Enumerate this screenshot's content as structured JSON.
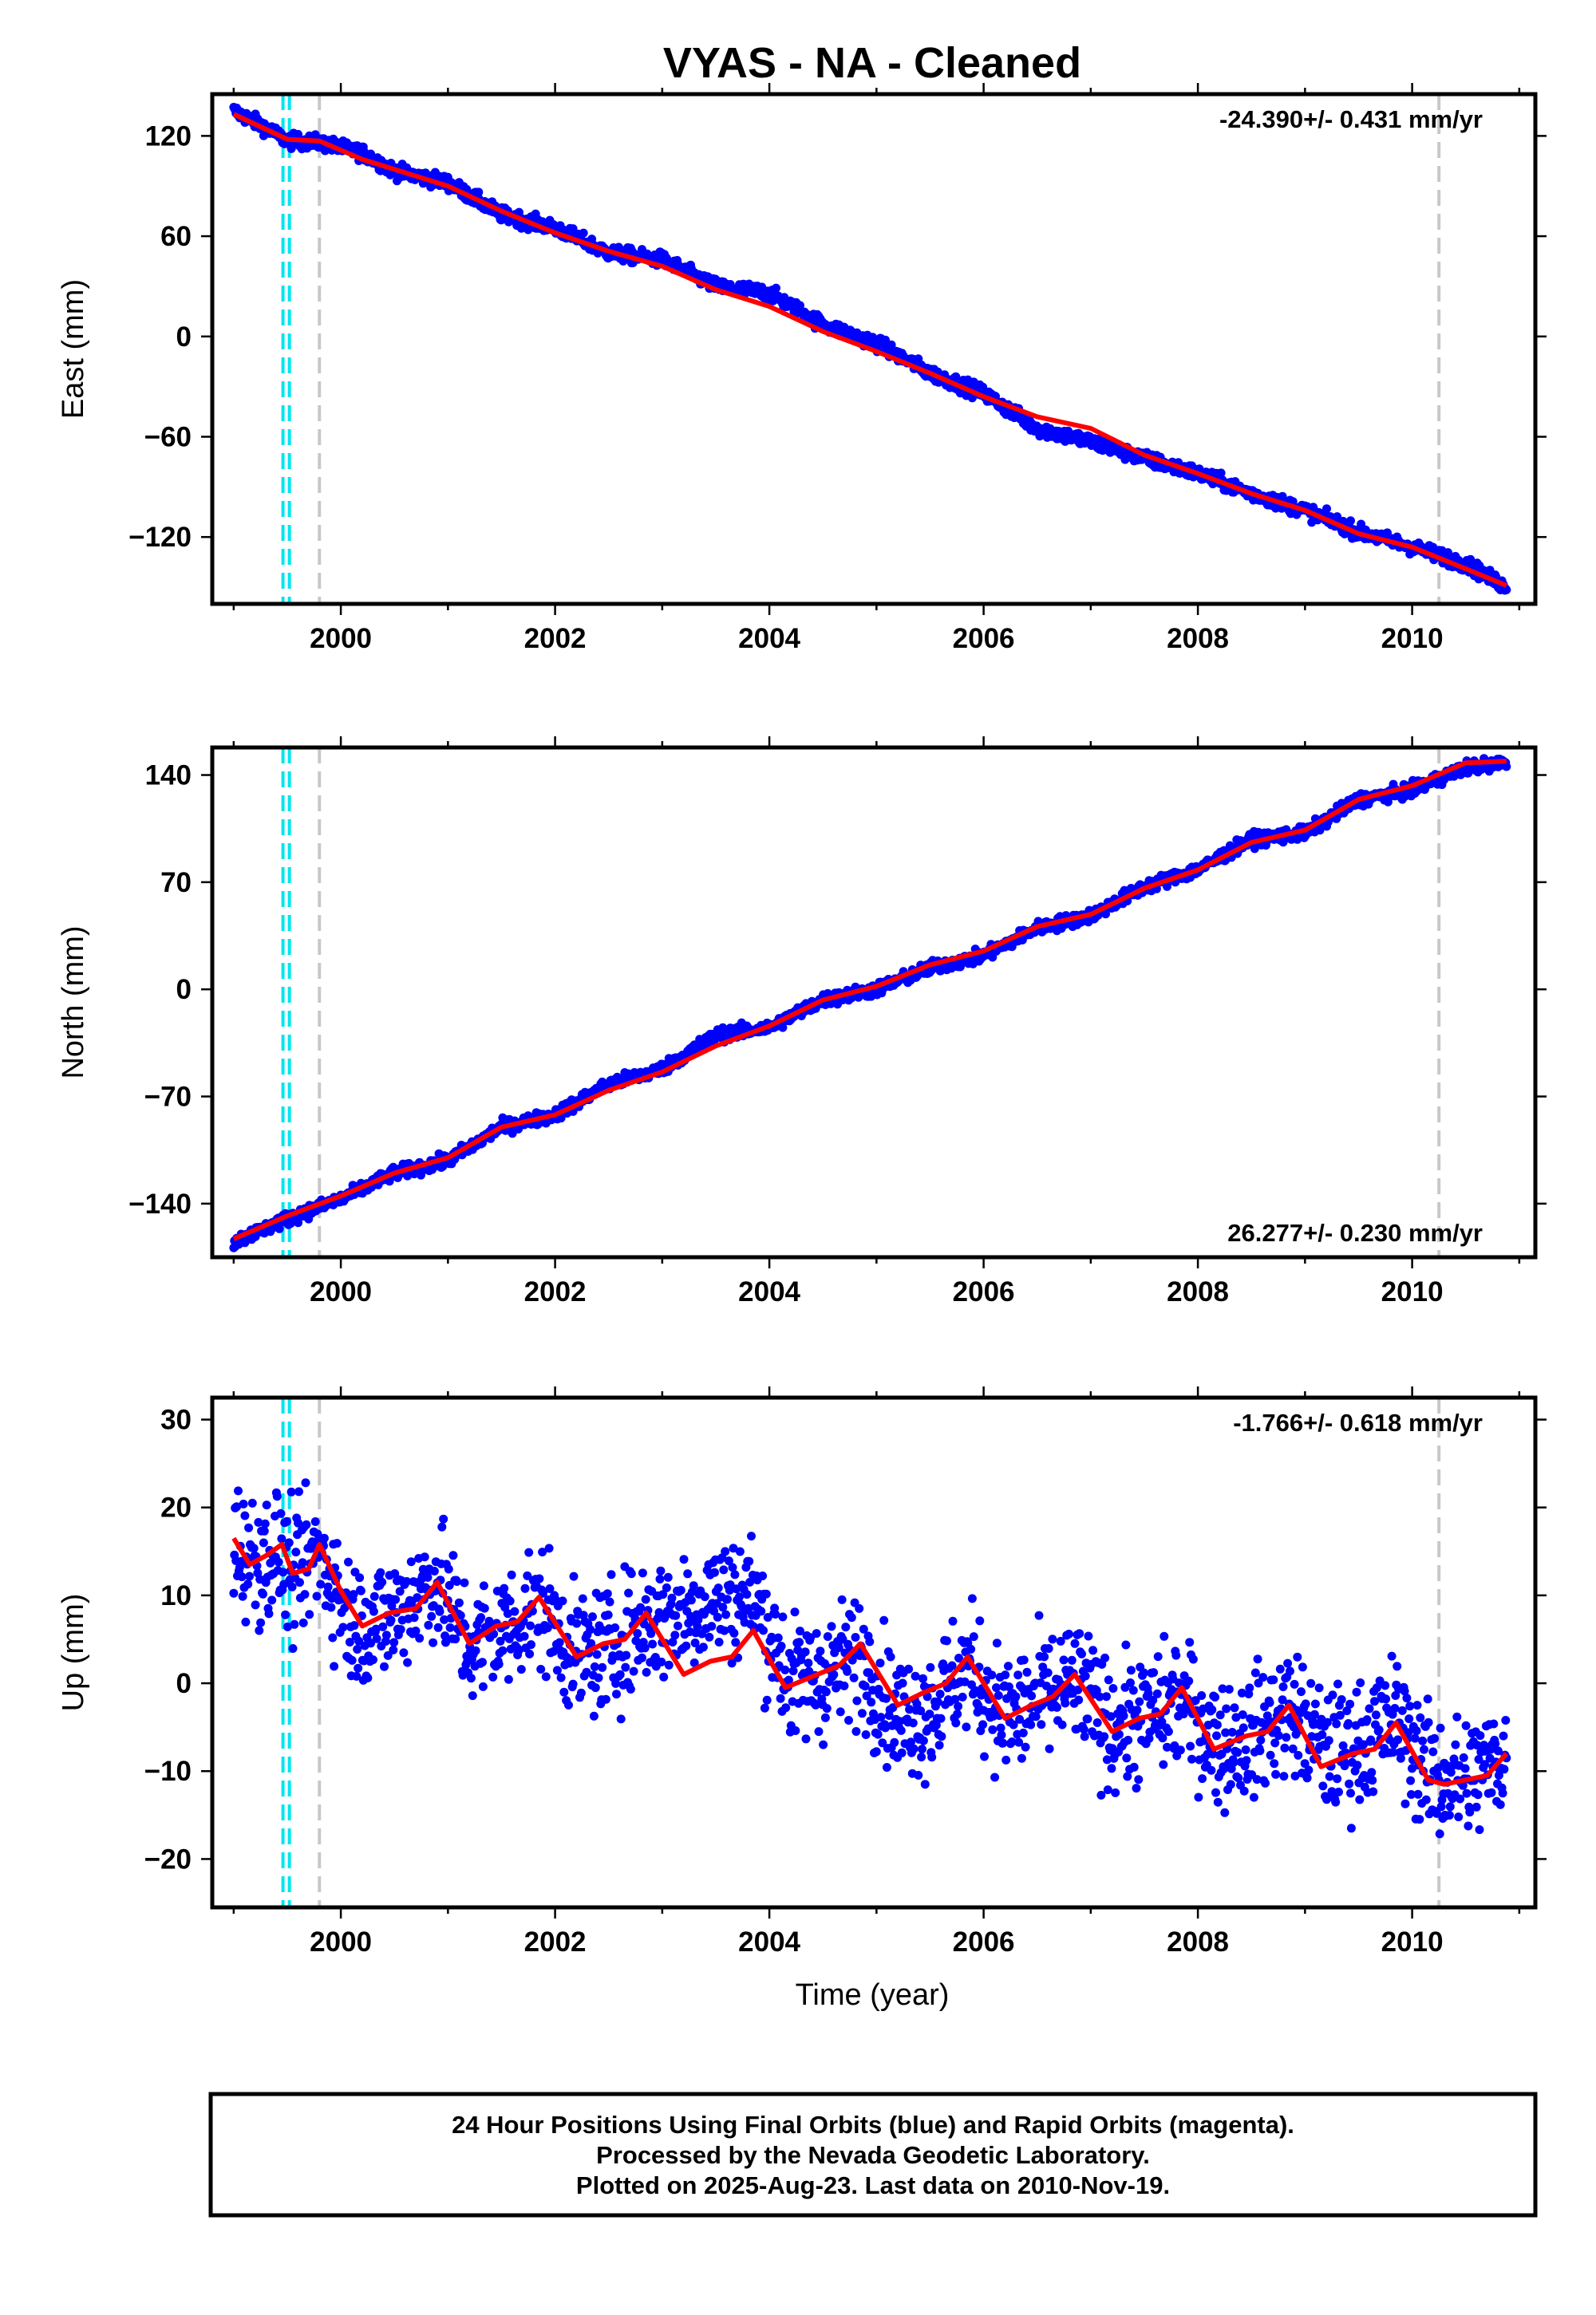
{
  "title": "VYAS  - NA - Cleaned",
  "xlabel": "Time (year)",
  "colors": {
    "data": "#0000ff",
    "model": "#ff0000",
    "offset_antenna": "#00e5ee",
    "offset_other": "#c8c8c8",
    "frame": "#000000"
  },
  "footer": {
    "line1": "24 Hour Positions Using Final Orbits (blue) and Rapid Orbits (magenta).",
    "line2": "Processed by the Nevada Geodetic Laboratory.",
    "line3": "Plotted on 2025-Aug-23. Last data on 2010-Nov-19."
  },
  "chart_data": [
    {
      "type": "scatter",
      "component": "East",
      "ylabel": "East (mm)",
      "rate_label": "-24.390+/- 0.431 mm/yr",
      "rate_position": "top-right",
      "xlim": [
        1998.8,
        2011.15
      ],
      "ylim": [
        -160,
        145
      ],
      "xticks": [
        2000,
        2002,
        2004,
        2006,
        2008,
        2010
      ],
      "yticks": [
        -120,
        -60,
        0,
        60,
        120
      ],
      "vertical_lines": [
        {
          "x": 1999.46,
          "color": "cyan"
        },
        {
          "x": 1999.52,
          "color": "cyan"
        },
        {
          "x": 1999.8,
          "color": "gray"
        },
        {
          "x": 2010.25,
          "color": "gray"
        }
      ],
      "series": [
        {
          "name": "Final Orbits (blue)",
          "kind": "points",
          "noise": 3,
          "x": [
            1999.0,
            1999.3,
            1999.5,
            1999.8,
            2000.2,
            2000.5,
            2001.0,
            2001.5,
            2002.0,
            2002.5,
            2003.0,
            2003.5,
            2004.0,
            2004.5,
            2005.0,
            2005.5,
            2006.0,
            2006.5,
            2007.0,
            2007.5,
            2008.0,
            2008.5,
            2009.0,
            2009.5,
            2010.0,
            2010.5,
            2010.88
          ],
          "y": [
            135,
            125,
            117,
            116,
            110,
            99,
            92,
            73,
            65,
            50,
            46,
            30,
            26,
            7,
            -4,
            -22,
            -34,
            -55,
            -63,
            -73,
            -82,
            -94,
            -104,
            -117,
            -126,
            -136,
            -150
          ]
        },
        {
          "name": "Model",
          "kind": "line",
          "x": [
            1999.0,
            1999.3,
            1999.5,
            1999.8,
            2000.2,
            2000.5,
            2001.0,
            2001.5,
            2002.0,
            2002.5,
            2003.0,
            2003.5,
            2004.0,
            2004.5,
            2005.0,
            2005.5,
            2006.0,
            2006.5,
            2007.0,
            2007.5,
            2008.0,
            2008.5,
            2009.0,
            2009.5,
            2010.0,
            2010.5,
            2010.88
          ],
          "y": [
            133,
            124,
            118,
            117,
            106,
            100,
            90,
            75,
            62,
            51,
            42,
            28,
            18,
            3,
            -9,
            -22,
            -36,
            -48,
            -55,
            -71,
            -82,
            -94,
            -104,
            -118,
            -126,
            -139,
            -149
          ]
        }
      ]
    },
    {
      "type": "scatter",
      "component": "North",
      "ylabel": "North (mm)",
      "rate_label": "26.277+/- 0.230 mm/yr",
      "rate_position": "bottom-right",
      "xlim": [
        1998.8,
        2011.15
      ],
      "ylim": [
        -175,
        158
      ],
      "xticks": [
        2000,
        2002,
        2004,
        2006,
        2008,
        2010
      ],
      "yticks": [
        -140,
        -70,
        0,
        70,
        140
      ],
      "vertical_lines": [
        {
          "x": 1999.46,
          "color": "cyan"
        },
        {
          "x": 1999.52,
          "color": "cyan"
        },
        {
          "x": 1999.8,
          "color": "gray"
        },
        {
          "x": 2010.25,
          "color": "gray"
        }
      ],
      "series": [
        {
          "name": "Final Orbits (blue)",
          "kind": "points",
          "noise": 3,
          "x": [
            1999.0,
            1999.5,
            2000.0,
            2000.5,
            2001.0,
            2001.5,
            2002.0,
            2002.5,
            2003.0,
            2003.5,
            2004.0,
            2004.5,
            2005.0,
            2005.5,
            2006.0,
            2006.5,
            2007.0,
            2007.5,
            2008.0,
            2008.5,
            2009.0,
            2009.5,
            2010.0,
            2010.5,
            2010.88
          ],
          "y": [
            -165,
            -150,
            -137,
            -120,
            -112,
            -90,
            -82,
            -62,
            -52,
            -30,
            -25,
            -7,
            0,
            14,
            22,
            40,
            48,
            67,
            78,
            98,
            102,
            124,
            130,
            145,
            148
          ]
        },
        {
          "name": "Model",
          "kind": "line",
          "x": [
            1999.0,
            1999.5,
            2000.0,
            2000.5,
            2001.0,
            2001.5,
            2002.0,
            2002.5,
            2003.0,
            2003.5,
            2004.0,
            2004.5,
            2005.0,
            2005.5,
            2006.0,
            2006.5,
            2007.0,
            2007.5,
            2008.0,
            2008.5,
            2009.0,
            2009.5,
            2010.0,
            2010.5,
            2010.88
          ],
          "y": [
            -163,
            -148,
            -135,
            -120,
            -110,
            -90,
            -82,
            -66,
            -54,
            -37,
            -24,
            -7,
            2,
            16,
            25,
            41,
            49,
            66,
            78,
            96,
            104,
            124,
            133,
            148,
            149
          ]
        }
      ]
    },
    {
      "type": "scatter",
      "component": "Up",
      "ylabel": "Up (mm)",
      "rate_label": "-1.766+/- 0.618 mm/yr",
      "rate_position": "top-right",
      "xlim": [
        1998.8,
        2011.15
      ],
      "ylim": [
        -25.5,
        32.5
      ],
      "xticks": [
        2000,
        2002,
        2004,
        2006,
        2008,
        2010
      ],
      "yticks": [
        -20,
        -10,
        0,
        10,
        20,
        30
      ],
      "vertical_lines": [
        {
          "x": 1999.46,
          "color": "cyan"
        },
        {
          "x": 1999.52,
          "color": "cyan"
        },
        {
          "x": 1999.8,
          "color": "gray"
        },
        {
          "x": 2010.25,
          "color": "gray"
        }
      ],
      "series": [
        {
          "name": "Final Orbits (blue)",
          "kind": "points",
          "noise": 5,
          "x": [
            1999.0,
            1999.2,
            1999.4,
            1999.55,
            1999.8,
            2000.1,
            2000.4,
            2000.9,
            2001.2,
            2001.5,
            2001.85,
            2002.2,
            2002.5,
            2002.85,
            2003.2,
            2003.5,
            2003.85,
            2004.2,
            2004.5,
            2004.85,
            2005.2,
            2005.5,
            2005.85,
            2006.2,
            2006.5,
            2006.85,
            2007.2,
            2007.5,
            2007.85,
            2008.2,
            2008.5,
            2008.85,
            2009.2,
            2009.5,
            2009.85,
            2010.2,
            2010.5,
            2010.88
          ],
          "y": [
            16,
            14,
            15,
            12,
            15,
            7,
            7,
            12,
            4,
            6,
            9,
            3,
            4,
            7,
            8,
            10,
            10,
            0,
            1,
            3,
            -4,
            -3,
            2,
            -4,
            -2,
            0,
            -5,
            -4,
            -2,
            -7,
            -6,
            -3,
            -8,
            -7,
            -4,
            -11,
            -11,
            -8
          ]
        },
        {
          "name": "Model",
          "kind": "line",
          "x": [
            1999.0,
            1999.15,
            1999.3,
            1999.45,
            1999.55,
            1999.7,
            1999.8,
            2000.0,
            2000.2,
            2000.45,
            2000.7,
            2000.9,
            2001.2,
            2001.45,
            2001.65,
            2001.85,
            2002.2,
            2002.45,
            2002.65,
            2002.85,
            2003.2,
            2003.45,
            2003.65,
            2003.85,
            2004.15,
            2004.45,
            2004.65,
            2004.85,
            2005.2,
            2005.45,
            2005.65,
            2005.85,
            2006.2,
            2006.45,
            2006.65,
            2006.85,
            2007.2,
            2007.45,
            2007.65,
            2007.85,
            2008.15,
            2008.45,
            2008.65,
            2008.85,
            2009.15,
            2009.45,
            2009.65,
            2009.85,
            2010.15,
            2010.3,
            2010.5,
            2010.7,
            2010.88
          ],
          "y": [
            16.5,
            13.5,
            14.5,
            15.8,
            12.5,
            13.0,
            15.8,
            10.5,
            6.5,
            8.0,
            8.5,
            11.5,
            4.5,
            6.5,
            7.0,
            9.8,
            3.0,
            4.5,
            5.0,
            8.0,
            1.0,
            2.5,
            3.0,
            6.0,
            -0.5,
            1.0,
            2.0,
            4.5,
            -2.5,
            -1.0,
            0.0,
            3.0,
            -4.0,
            -2.5,
            -1.5,
            1.0,
            -5.5,
            -4.0,
            -3.5,
            -0.5,
            -7.5,
            -6.0,
            -5.5,
            -2.5,
            -9.5,
            -8.0,
            -7.5,
            -4.5,
            -11.0,
            -11.5,
            -11.0,
            -10.5,
            -8.0
          ]
        }
      ]
    }
  ]
}
